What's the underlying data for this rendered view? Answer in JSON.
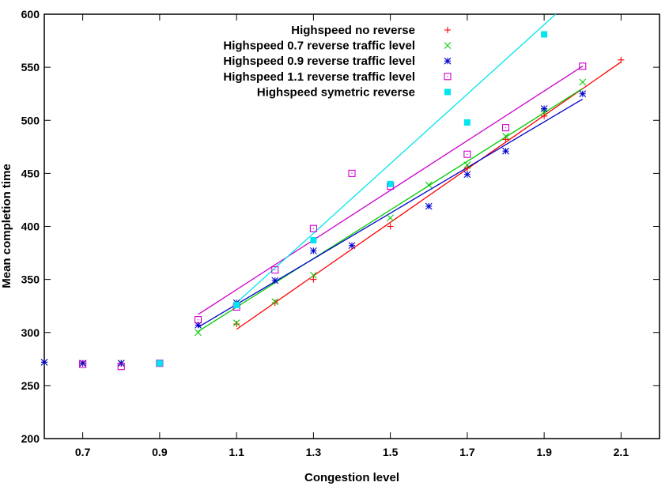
{
  "chart_data": {
    "type": "scatter",
    "title": "",
    "xlabel": "Congestion level",
    "ylabel": "Mean completion time",
    "xlim": [
      0.6,
      2.2
    ],
    "ylim": [
      200,
      600
    ],
    "x_ticks": [
      0.7,
      0.9,
      1.1,
      1.3,
      1.5,
      1.7,
      1.9,
      2.1
    ],
    "x_tick_labels": [
      "0.7",
      "0.9",
      "1.1",
      "1.3",
      "1.5",
      "1.7",
      "1.9",
      "2.1"
    ],
    "y_ticks": [
      200,
      250,
      300,
      350,
      400,
      450,
      500,
      550,
      600
    ],
    "y_tick_labels": [
      "200",
      "250",
      "300",
      "350",
      "400",
      "450",
      "500",
      "550",
      "600"
    ],
    "grid": false,
    "legend_position": "top-right",
    "series": [
      {
        "name": "Highspeed no reverse",
        "color": "#ff0000",
        "marker": "plus",
        "points": [
          [
            0.6,
            272
          ],
          [
            0.7,
            271
          ],
          [
            0.8,
            271
          ],
          [
            0.9,
            271
          ],
          [
            1.1,
            308
          ],
          [
            1.2,
            328
          ],
          [
            1.3,
            350
          ],
          [
            1.5,
            400
          ],
          [
            1.7,
            455
          ],
          [
            1.8,
            482
          ],
          [
            1.9,
            504
          ],
          [
            2.1,
            557
          ]
        ],
        "fit": [
          [
            1.1,
            303
          ],
          [
            2.1,
            555
          ]
        ]
      },
      {
        "name": "Highspeed 0.7 reverse traffic level",
        "color": "#00cc00",
        "marker": "cross",
        "points": [
          [
            0.6,
            272
          ],
          [
            0.7,
            271
          ],
          [
            0.8,
            271
          ],
          [
            0.9,
            271
          ],
          [
            1.0,
            300
          ],
          [
            1.1,
            309
          ],
          [
            1.2,
            329
          ],
          [
            1.3,
            354
          ],
          [
            1.5,
            408
          ],
          [
            1.6,
            439
          ],
          [
            1.7,
            458
          ],
          [
            1.8,
            485
          ],
          [
            1.9,
            508
          ],
          [
            2.0,
            536
          ]
        ],
        "fit": [
          [
            1.0,
            301
          ],
          [
            2.0,
            530
          ]
        ]
      },
      {
        "name": "Highspeed 0.9 reverse traffic level",
        "color": "#0000cc",
        "marker": "star",
        "points": [
          [
            0.6,
            272
          ],
          [
            0.7,
            271
          ],
          [
            0.8,
            271
          ],
          [
            0.9,
            271
          ],
          [
            1.0,
            307
          ],
          [
            1.1,
            328
          ],
          [
            1.2,
            349
          ],
          [
            1.3,
            377
          ],
          [
            1.4,
            382
          ],
          [
            1.6,
            419
          ],
          [
            1.7,
            449
          ],
          [
            1.8,
            471
          ],
          [
            1.9,
            511
          ],
          [
            2.0,
            525
          ]
        ],
        "fit": [
          [
            1.0,
            305
          ],
          [
            2.0,
            520
          ]
        ]
      },
      {
        "name": "Highspeed 1.1 reverse traffic level",
        "color": "#cc00cc",
        "marker": "square",
        "points": [
          [
            0.7,
            270
          ],
          [
            0.8,
            268
          ],
          [
            0.9,
            271
          ],
          [
            1.0,
            312
          ],
          [
            1.1,
            324
          ],
          [
            1.2,
            359
          ],
          [
            1.3,
            398
          ],
          [
            1.4,
            450
          ],
          [
            1.5,
            438
          ],
          [
            1.7,
            468
          ],
          [
            1.8,
            493
          ],
          [
            2.0,
            551
          ]
        ],
        "fit": [
          [
            1.0,
            317
          ],
          [
            2.0,
            551
          ]
        ]
      },
      {
        "name": "Highspeed symetric reverse",
        "color": "#00e5ee",
        "marker": "filled-square",
        "points": [
          [
            0.9,
            271
          ],
          [
            1.1,
            326
          ],
          [
            1.3,
            387
          ],
          [
            1.5,
            440
          ],
          [
            1.7,
            498
          ],
          [
            1.9,
            581
          ]
        ],
        "fit": [
          [
            1.1,
            328
          ],
          [
            1.93,
            600
          ]
        ]
      }
    ]
  }
}
